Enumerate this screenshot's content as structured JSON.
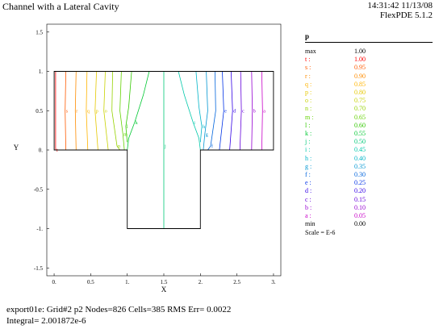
{
  "header": {
    "title": "Channel with a Lateral Cavity",
    "time": "14:31:42 11/13/08",
    "version": "FlexPDE 5.1.2"
  },
  "footer": {
    "line1": "export01e:  Grid#2  p2  Nodes=826 Cells=385 RMS Err= 0.0022",
    "line2": "Integral=  2.001872e-6"
  },
  "legend": {
    "variable": "p",
    "scale": "Scale = E-6",
    "entries": [
      {
        "label": "max",
        "value": "1.00",
        "color": "#000000"
      },
      {
        "label": "t :",
        "value": "1.00",
        "color": "#ff0000"
      },
      {
        "label": "s :",
        "value": "0.95",
        "color": "#ff5a00"
      },
      {
        "label": "r :",
        "value": "0.90",
        "color": "#ff8c00"
      },
      {
        "label": "q :",
        "value": "0.85",
        "color": "#ffb400"
      },
      {
        "label": "p :",
        "value": "0.80",
        "color": "#e6c800"
      },
      {
        "label": "o :",
        "value": "0.75",
        "color": "#c8d200"
      },
      {
        "label": "n :",
        "value": "0.70",
        "color": "#96d200"
      },
      {
        "label": "m :",
        "value": "0.65",
        "color": "#64d200"
      },
      {
        "label": "l :",
        "value": "0.60",
        "color": "#32c800"
      },
      {
        "label": "k :",
        "value": "0.55",
        "color": "#00c832"
      },
      {
        "label": "j :",
        "value": "0.50",
        "color": "#00c878"
      },
      {
        "label": "i :",
        "value": "0.45",
        "color": "#00c8aa"
      },
      {
        "label": "h :",
        "value": "0.40",
        "color": "#00b4c8"
      },
      {
        "label": "g :",
        "value": "0.35",
        "color": "#0096d2"
      },
      {
        "label": "f :",
        "value": "0.30",
        "color": "#0064dc"
      },
      {
        "label": "e :",
        "value": "0.25",
        "color": "#0032e6"
      },
      {
        "label": "d :",
        "value": "0.20",
        "color": "#3200e6"
      },
      {
        "label": "c :",
        "value": "0.15",
        "color": "#6400dc"
      },
      {
        "label": "b :",
        "value": "0.10",
        "color": "#9600d2"
      },
      {
        "label": "a :",
        "value": "0.05",
        "color": "#c800c8"
      },
      {
        "label": "min",
        "value": "0.00",
        "color": "#000000"
      }
    ]
  },
  "chart_data": {
    "type": "contour",
    "xlabel": "X",
    "ylabel": "Y",
    "xlim": [
      -0.1,
      3.1
    ],
    "ylim": [
      -1.6,
      1.6
    ],
    "xticks": [
      "0.",
      "0.5",
      "1.",
      "1.5",
      "2.",
      "2.5",
      "3."
    ],
    "xtick_values": [
      0,
      0.5,
      1,
      1.5,
      2,
      2.5,
      3
    ],
    "yticks": [
      "1.5",
      "1.",
      "0.5",
      "0.",
      "-0.5",
      "-1.",
      "-1.5"
    ],
    "ytick_values": [
      1.5,
      1,
      0.5,
      0,
      -0.5,
      -1,
      -1.5
    ],
    "domain": {
      "channel": {
        "x": [
          0,
          3
        ],
        "y": [
          0,
          1
        ]
      },
      "cavity": {
        "x": [
          1,
          2
        ],
        "y": [
          -1,
          0
        ]
      }
    },
    "contours": [
      {
        "level": "t",
        "value": 1.0,
        "label_at": [
          0.02,
          0.55
        ],
        "points": [
          [
            0.02,
            1
          ],
          [
            0.02,
            0
          ]
        ]
      },
      {
        "level": "s",
        "value": 0.95,
        "points": [
          [
            0.16,
            1
          ],
          [
            0.15,
            0.5
          ],
          [
            0.16,
            0
          ]
        ]
      },
      {
        "level": "r",
        "value": 0.9,
        "points": [
          [
            0.3,
            1
          ],
          [
            0.29,
            0.5
          ],
          [
            0.3,
            0
          ]
        ]
      },
      {
        "level": "q",
        "value": 0.85,
        "points": [
          [
            0.45,
            1
          ],
          [
            0.44,
            0.5
          ],
          [
            0.46,
            0
          ]
        ]
      },
      {
        "level": "p",
        "value": 0.8,
        "points": [
          [
            0.58,
            1
          ],
          [
            0.56,
            0.5
          ],
          [
            0.6,
            0
          ]
        ]
      },
      {
        "level": "o",
        "value": 0.75,
        "points": [
          [
            0.7,
            1
          ],
          [
            0.68,
            0.5
          ],
          [
            0.74,
            0
          ]
        ]
      },
      {
        "level": "n",
        "value": 0.7,
        "points": [
          [
            0.8,
            1
          ],
          [
            0.79,
            0.5
          ],
          [
            0.86,
            0.05
          ],
          [
            0.9,
            0
          ]
        ]
      },
      {
        "level": "m",
        "value": 0.65,
        "points": [
          [
            0.92,
            1
          ],
          [
            0.9,
            0.5
          ],
          [
            0.94,
            0.2
          ],
          [
            0.96,
            0
          ]
        ]
      },
      {
        "level": "l",
        "value": 0.6,
        "points": [
          [
            1.06,
            1
          ],
          [
            1.02,
            0.55
          ],
          [
            0.98,
            0.3
          ],
          [
            1.0,
            0.1
          ]
        ]
      },
      {
        "level": "k",
        "value": 0.55,
        "points": [
          [
            1.3,
            1
          ],
          [
            1.22,
            0.7
          ],
          [
            1.1,
            0.35
          ],
          [
            1.02,
            0.15
          ],
          [
            1.0,
            0.0
          ]
        ]
      },
      {
        "level": "j",
        "value": 0.5,
        "points": [
          [
            1.5,
            1
          ],
          [
            1.5,
            0.5
          ],
          [
            1.5,
            0.05
          ],
          [
            1.5,
            -1
          ]
        ]
      },
      {
        "level": "i",
        "value": 0.45,
        "points": [
          [
            1.7,
            1
          ],
          [
            1.78,
            0.7
          ],
          [
            1.9,
            0.35
          ],
          [
            1.98,
            0.15
          ],
          [
            2.0,
            0.0
          ]
        ]
      },
      {
        "level": "h",
        "value": 0.4,
        "points": [
          [
            1.94,
            1
          ],
          [
            1.98,
            0.55
          ],
          [
            2.02,
            0.3
          ],
          [
            2.0,
            0.1
          ]
        ]
      },
      {
        "level": "g",
        "value": 0.35,
        "points": [
          [
            2.08,
            1
          ],
          [
            2.1,
            0.5
          ],
          [
            2.06,
            0.2
          ],
          [
            2.04,
            0
          ]
        ]
      },
      {
        "level": "f",
        "value": 0.3,
        "points": [
          [
            2.2,
            1
          ],
          [
            2.21,
            0.5
          ],
          [
            2.14,
            0.05
          ],
          [
            2.1,
            0
          ]
        ]
      },
      {
        "level": "e",
        "value": 0.25,
        "points": [
          [
            2.3,
            1
          ],
          [
            2.32,
            0.5
          ],
          [
            2.26,
            0
          ]
        ]
      },
      {
        "level": "d",
        "value": 0.2,
        "points": [
          [
            2.42,
            1
          ],
          [
            2.44,
            0.5
          ],
          [
            2.4,
            0
          ]
        ]
      },
      {
        "level": "c",
        "value": 0.15,
        "points": [
          [
            2.55,
            1
          ],
          [
            2.56,
            0.5
          ],
          [
            2.54,
            0
          ]
        ]
      },
      {
        "level": "b",
        "value": 0.1,
        "points": [
          [
            2.7,
            1
          ],
          [
            2.71,
            0.5
          ],
          [
            2.7,
            0
          ]
        ]
      },
      {
        "level": "a",
        "value": 0.05,
        "points": [
          [
            2.84,
            1
          ],
          [
            2.85,
            0.5
          ],
          [
            2.84,
            0
          ]
        ]
      }
    ]
  }
}
